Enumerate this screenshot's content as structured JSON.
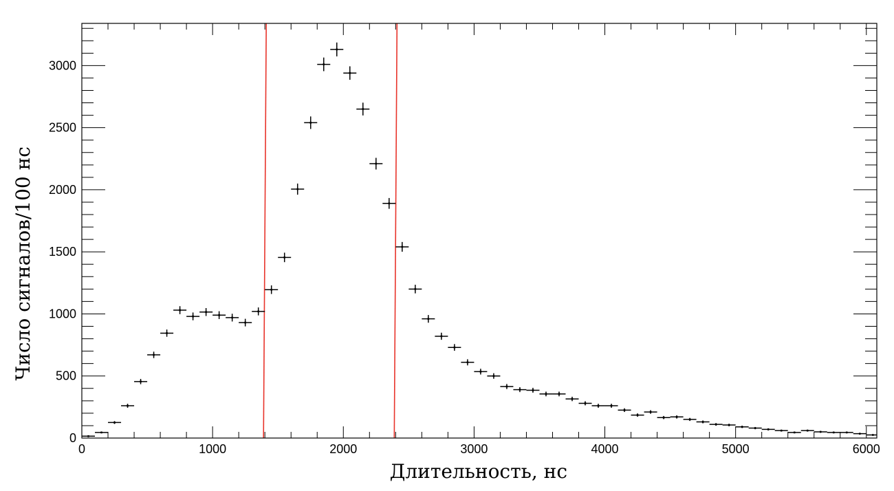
{
  "chart_data": {
    "type": "scatter",
    "title": "",
    "xlabel": "Длительность, нс",
    "ylabel": "Число сигналов/100 нс",
    "xlim": [
      0,
      6080
    ],
    "ylim": [
      0,
      3340
    ],
    "x_ticks": [
      "0",
      "1000",
      "2000",
      "3000",
      "4000",
      "5000",
      "6000"
    ],
    "y_ticks": [
      "0",
      "500",
      "1000",
      "1500",
      "2000",
      "2500",
      "3000"
    ],
    "bin_width": 100,
    "grid": false,
    "legend": "none",
    "colors": {
      "points": "#000000",
      "cut_lines": "#e8332a"
    },
    "cut_lines_x": [
      1400,
      2400
    ],
    "series": [
      {
        "values": [
          {
            "x": 50,
            "y": 15
          },
          {
            "x": 150,
            "y": 45
          },
          {
            "x": 250,
            "y": 125
          },
          {
            "x": 350,
            "y": 260
          },
          {
            "x": 450,
            "y": 455
          },
          {
            "x": 550,
            "y": 670
          },
          {
            "x": 650,
            "y": 845
          },
          {
            "x": 750,
            "y": 1030
          },
          {
            "x": 850,
            "y": 980
          },
          {
            "x": 950,
            "y": 1015
          },
          {
            "x": 1050,
            "y": 990
          },
          {
            "x": 1150,
            "y": 970
          },
          {
            "x": 1250,
            "y": 930
          },
          {
            "x": 1350,
            "y": 1020
          },
          {
            "x": 1450,
            "y": 1195
          },
          {
            "x": 1550,
            "y": 1455
          },
          {
            "x": 1650,
            "y": 2005
          },
          {
            "x": 1750,
            "y": 2540
          },
          {
            "x": 1850,
            "y": 3010
          },
          {
            "x": 1950,
            "y": 3130
          },
          {
            "x": 2050,
            "y": 2940
          },
          {
            "x": 2150,
            "y": 2650
          },
          {
            "x": 2250,
            "y": 2210
          },
          {
            "x": 2350,
            "y": 1890
          },
          {
            "x": 2450,
            "y": 1540
          },
          {
            "x": 2550,
            "y": 1200
          },
          {
            "x": 2650,
            "y": 960
          },
          {
            "x": 2750,
            "y": 820
          },
          {
            "x": 2850,
            "y": 730
          },
          {
            "x": 2950,
            "y": 610
          },
          {
            "x": 3050,
            "y": 535
          },
          {
            "x": 3150,
            "y": 500
          },
          {
            "x": 3250,
            "y": 415
          },
          {
            "x": 3350,
            "y": 390
          },
          {
            "x": 3450,
            "y": 385
          },
          {
            "x": 3550,
            "y": 355
          },
          {
            "x": 3650,
            "y": 355
          },
          {
            "x": 3750,
            "y": 315
          },
          {
            "x": 3850,
            "y": 280
          },
          {
            "x": 3950,
            "y": 260
          },
          {
            "x": 4050,
            "y": 260
          },
          {
            "x": 4150,
            "y": 225
          },
          {
            "x": 4250,
            "y": 185
          },
          {
            "x": 4350,
            "y": 210
          },
          {
            "x": 4450,
            "y": 165
          },
          {
            "x": 4550,
            "y": 170
          },
          {
            "x": 4650,
            "y": 150
          },
          {
            "x": 4750,
            "y": 130
          },
          {
            "x": 4850,
            "y": 110
          },
          {
            "x": 4950,
            "y": 105
          },
          {
            "x": 5050,
            "y": 90
          },
          {
            "x": 5150,
            "y": 80
          },
          {
            "x": 5250,
            "y": 70
          },
          {
            "x": 5350,
            "y": 60
          },
          {
            "x": 5450,
            "y": 45
          },
          {
            "x": 5550,
            "y": 60
          },
          {
            "x": 5650,
            "y": 50
          },
          {
            "x": 5750,
            "y": 45
          },
          {
            "x": 5850,
            "y": 45
          },
          {
            "x": 5950,
            "y": 35
          },
          {
            "x": 6050,
            "y": 25
          }
        ]
      }
    ]
  }
}
